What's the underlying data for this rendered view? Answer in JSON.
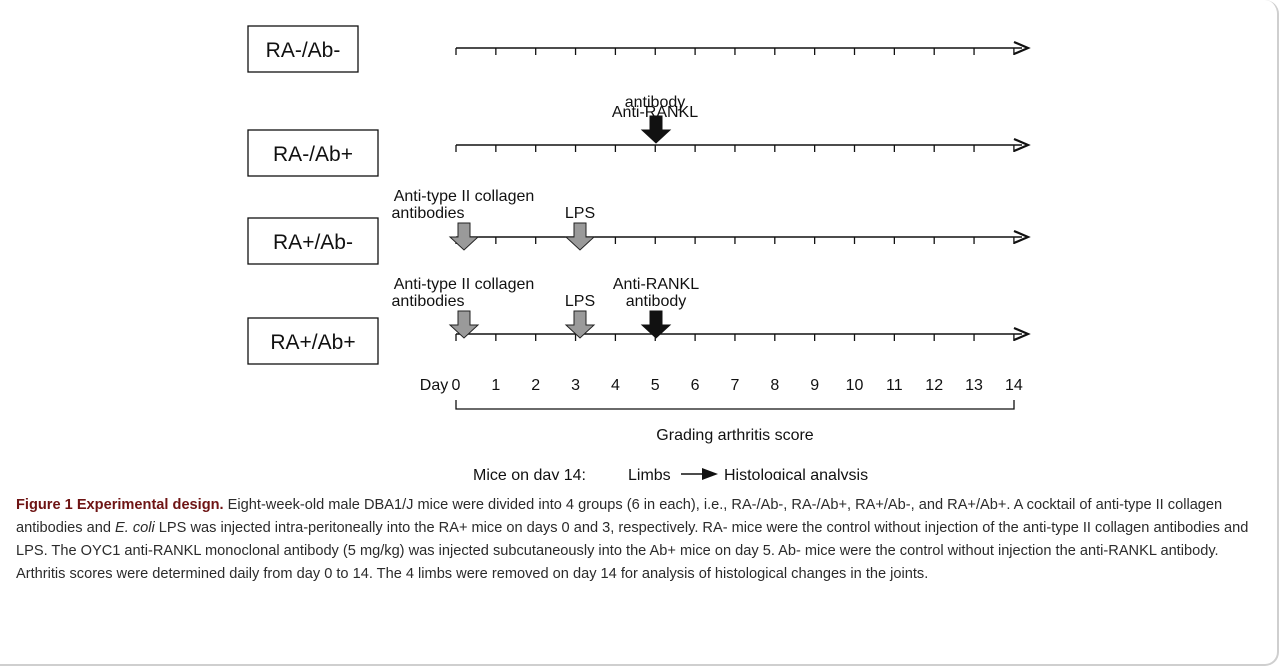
{
  "groups": [
    {
      "label": "RA-/Ab-"
    },
    {
      "label": "RA-/Ab+"
    },
    {
      "label": "RA+/Ab-"
    },
    {
      "label": "RA+/Ab+"
    }
  ],
  "annotations": {
    "anti_rankl": [
      "Anti-RANKL",
      "antibody"
    ],
    "anti_collagen": [
      "Anti-type II collagen",
      "antibodies"
    ],
    "lps": "LPS"
  },
  "axis": {
    "day_label": "Day",
    "days": [
      "0",
      "1",
      "2",
      "3",
      "4",
      "5",
      "6",
      "7",
      "8",
      "9",
      "10",
      "11",
      "12",
      "13",
      "14"
    ]
  },
  "bracket_label": "Grading arthritis score",
  "footer": {
    "prefix": "Mice on day 14:",
    "limbs": "Limbs",
    "analysis": "Histological analysis"
  },
  "caption": {
    "title": "Figure 1 Experimental design.",
    "text_a": " Eight-week-old male DBA1/J mice were divided into 4 groups (6 in each), i.e., RA-/Ab-, RA-/Ab+, RA+/Ab-, and RA+/Ab+. A cocktail of anti-type II collagen antibodies and ",
    "italic": "E. coli",
    "text_b": " LPS was injected intra-peritoneally into the RA+ mice on days 0 and 3, respectively. RA- mice were the control without injection of the anti-type II collagen antibodies and LPS. The OYC1 anti-RANKL monoclonal antibody (5 mg/kg) was injected subcutaneously into the Ab+ mice on day 5. Ab- mice were the control without injection the anti-RANKL antibody. Arthritis scores were determined daily from day 0 to 14. The 4 limbs were removed on day 14 for analysis of histological changes in the joints."
  }
}
